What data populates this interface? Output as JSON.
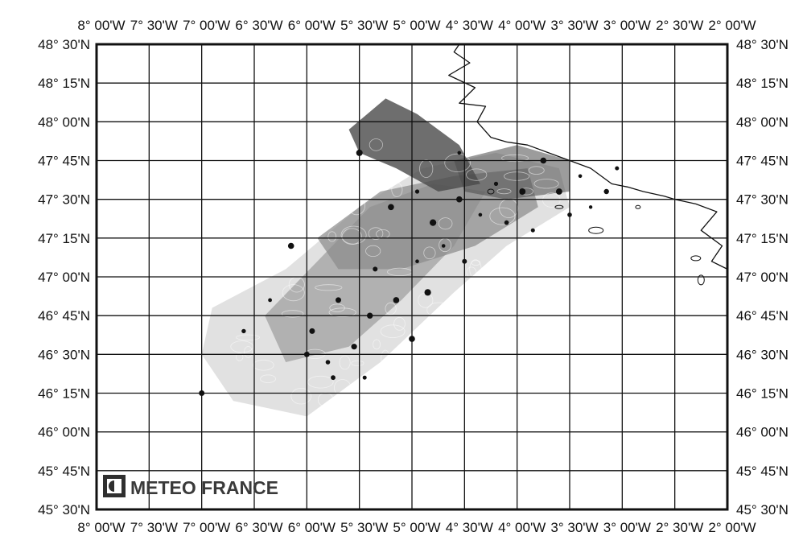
{
  "map": {
    "logo": {
      "text": "METEO FRANCE"
    },
    "lon_labels": [
      "8° 00'W",
      "7° 30'W",
      "7° 00'W",
      "6° 30'W",
      "6° 00'W",
      "5° 30'W",
      "5° 00'W",
      "4° 30'W",
      "4° 00'W",
      "3° 30'W",
      "3° 00'W",
      "2° 30'W",
      "2° 00'W"
    ],
    "lat_labels": [
      "48° 30'N",
      "48° 15'N",
      "48° 00'N",
      "47° 45'N",
      "47° 30'N",
      "47° 15'N",
      "47° 00'N",
      "46° 45'N",
      "46° 30'N",
      "46° 15'N",
      "46° 00'N",
      "45° 45'N",
      "45° 30'N"
    ],
    "colors": {
      "frame": "#111111",
      "grid": "#111111",
      "coast": "#111111",
      "spill_dark": "#4a4a4a",
      "spill_mid": "#8a8a8a",
      "spill_light": "#c8c8c8",
      "observations": "#111111"
    }
  }
}
